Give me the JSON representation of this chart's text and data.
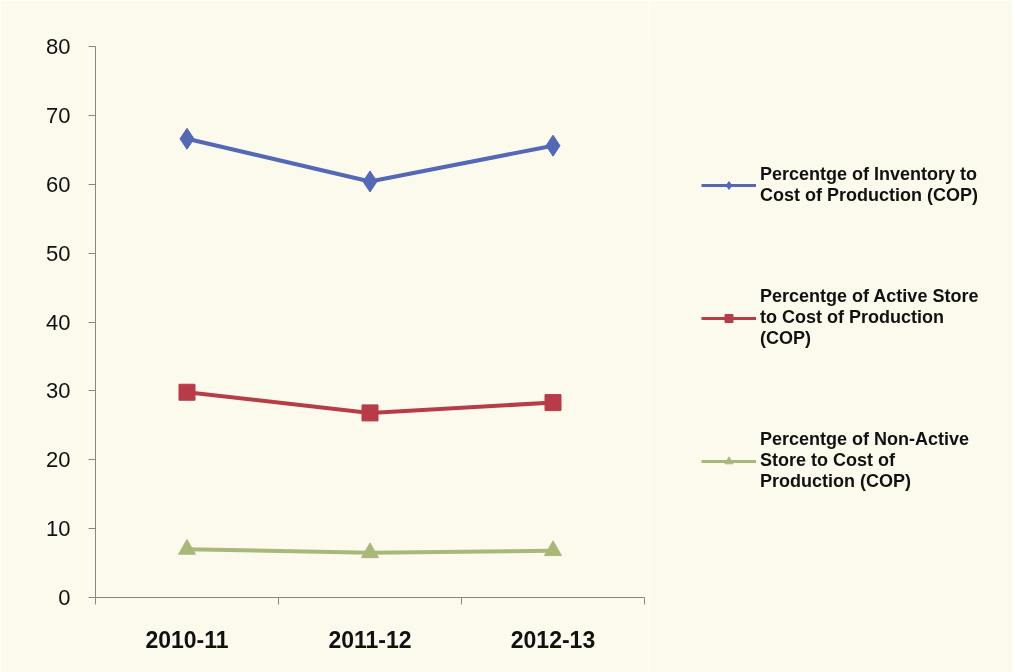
{
  "chart_data": {
    "type": "line",
    "categories": [
      "2010-11",
      "2011-12",
      "2012-13"
    ],
    "ylim": [
      0,
      80
    ],
    "yticks": [
      0,
      10,
      20,
      30,
      40,
      50,
      60,
      70,
      80
    ],
    "grid": false,
    "legend": "right",
    "series": [
      {
        "name": "Percentge of Inventory to Cost of Production (COP)",
        "color": "#5468b8",
        "marker": "diamond",
        "values": [
          66.6,
          60.4,
          65.6
        ]
      },
      {
        "name": "Percentge of Active Store to Cost of Production (COP)",
        "color": "#b83c48",
        "marker": "square",
        "values": [
          29.8,
          26.8,
          28.3
        ]
      },
      {
        "name": "Percentge of Non-Active Store to Cost of Production (COP)",
        "color": "#a9b878",
        "marker": "triangle",
        "values": [
          7.0,
          6.5,
          6.8
        ]
      }
    ]
  }
}
